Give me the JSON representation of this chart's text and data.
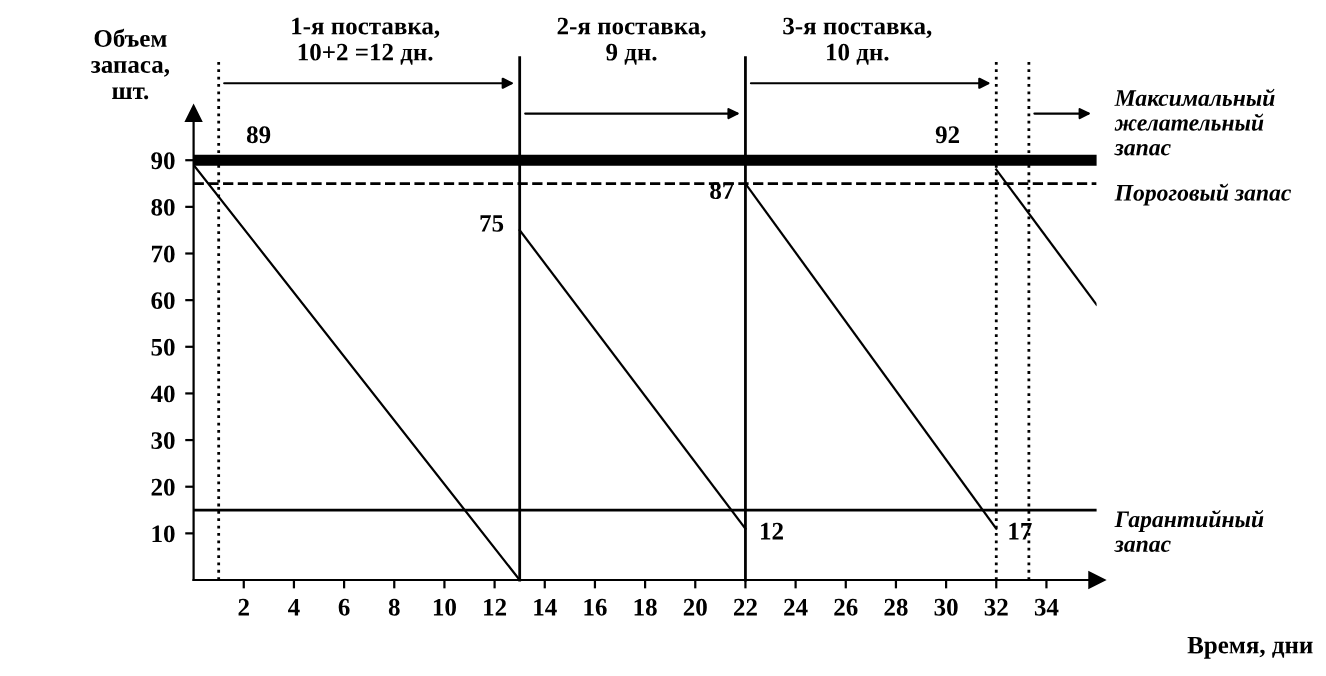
{
  "chart_data": {
    "type": "line",
    "xlabel": "Время, дни",
    "ylabel": "Объем\nзапаса,\nшт.",
    "series": [
      {
        "color": "#000000",
        "x": [
          0,
          13
        ],
        "values": [
          89,
          0
        ]
      },
      {
        "color": "#000000",
        "x": [
          13,
          22
        ],
        "values": [
          75,
          11
        ]
      },
      {
        "color": "#000000",
        "x": [
          22,
          32
        ],
        "values": [
          85,
          11
        ]
      },
      {
        "color": "#000000",
        "x": [
          32,
          36
        ],
        "values": [
          88,
          59
        ]
      }
    ],
    "xlim": [
      0,
      36
    ],
    "ylim": [
      0,
      100
    ],
    "xticks": [
      2,
      4,
      6,
      8,
      10,
      12,
      14,
      16,
      18,
      20,
      22,
      24,
      26,
      28,
      30,
      32,
      34
    ],
    "yticks": [
      10,
      20,
      30,
      40,
      50,
      60,
      70,
      80,
      90
    ],
    "grid": false,
    "marker": "none",
    "line_style": "solid",
    "ref_lines": [
      {
        "axis": "y",
        "value": 90,
        "label": "Максимальный\nжелательный\nзапас",
        "color": "#000000",
        "line_style": "solid"
      },
      {
        "axis": "y",
        "value": 85,
        "label": "Пороговый запас",
        "color": "#000000",
        "line_style": "dashed"
      },
      {
        "axis": "y",
        "value": 15,
        "label": "Гарантийный\nзапас",
        "color": "#000000",
        "line_style": "solid"
      },
      {
        "axis": "x",
        "value": 1,
        "color": "#000000",
        "line_style": "dotted"
      },
      {
        "axis": "x",
        "value": 13,
        "color": "#000000",
        "line_style": "solid"
      },
      {
        "axis": "x",
        "value": 22,
        "color": "#000000",
        "line_style": "solid"
      },
      {
        "axis": "x",
        "value": 32,
        "color": "#000000",
        "line_style": "dotted"
      },
      {
        "axis": "x",
        "value": 33.3,
        "color": "#000000",
        "line_style": "dotted"
      }
    ],
    "annotations": [
      "1-я поставка,\n10+2 =12 дн.",
      "2-я поставка,\n9 дн.",
      "3-я поставка,\n10 дн.",
      "89",
      "75",
      "87",
      "92",
      "12",
      "17"
    ]
  }
}
